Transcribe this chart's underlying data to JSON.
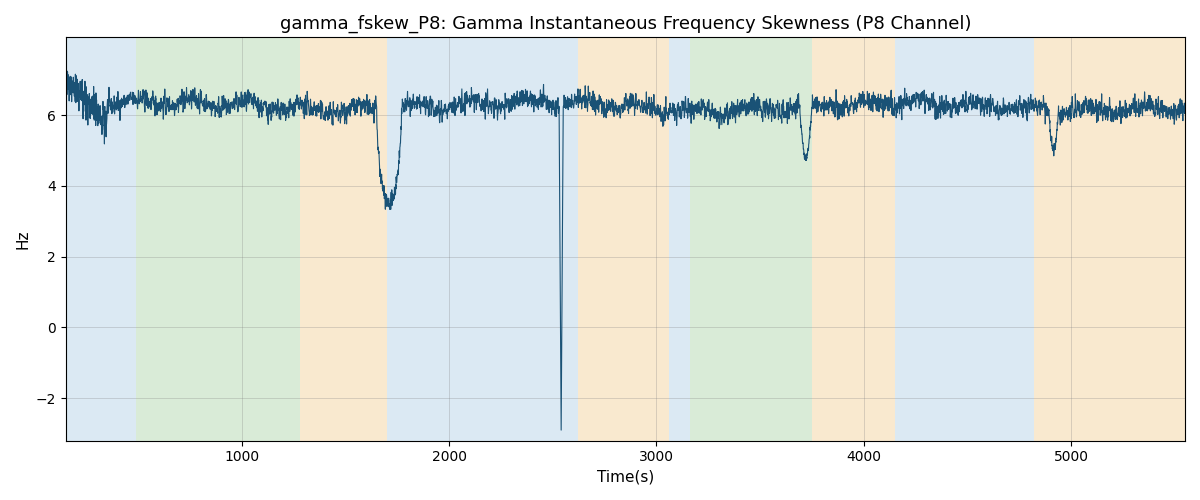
{
  "title": "gamma_fskew_P8: Gamma Instantaneous Frequency Skewness (P8 Channel)",
  "xlabel": "Time(s)",
  "ylabel": "Hz",
  "xlim": [
    150,
    5550
  ],
  "ylim": [
    -3.2,
    8.2
  ],
  "yticks": [
    -2,
    0,
    2,
    4,
    6
  ],
  "bg_regions": [
    {
      "xmin": 150,
      "xmax": 490,
      "color": "#b8d4e8",
      "alpha": 0.5
    },
    {
      "xmin": 490,
      "xmax": 1280,
      "color": "#b5d9b0",
      "alpha": 0.5
    },
    {
      "xmin": 1280,
      "xmax": 1700,
      "color": "#f5d5a0",
      "alpha": 0.5
    },
    {
      "xmin": 1700,
      "xmax": 2620,
      "color": "#b8d4e8",
      "alpha": 0.5
    },
    {
      "xmin": 2620,
      "xmax": 3060,
      "color": "#f5d5a0",
      "alpha": 0.5
    },
    {
      "xmin": 3060,
      "xmax": 3160,
      "color": "#b8d4e8",
      "alpha": 0.5
    },
    {
      "xmin": 3160,
      "xmax": 3750,
      "color": "#b5d9b0",
      "alpha": 0.5
    },
    {
      "xmin": 3750,
      "xmax": 4150,
      "color": "#f5d5a0",
      "alpha": 0.5
    },
    {
      "xmin": 4150,
      "xmax": 4820,
      "color": "#b8d4e8",
      "alpha": 0.5
    },
    {
      "xmin": 4820,
      "xmax": 5550,
      "color": "#f5d5a0",
      "alpha": 0.5
    }
  ],
  "line_color": "#1a5276",
  "line_width": 0.8,
  "seed": 42,
  "n_points": 5400,
  "x_start": 150,
  "x_end": 5550,
  "base_value": 6.25,
  "noise_std": 0.22,
  "title_fontsize": 13,
  "label_fontsize": 11,
  "tick_fontsize": 10
}
